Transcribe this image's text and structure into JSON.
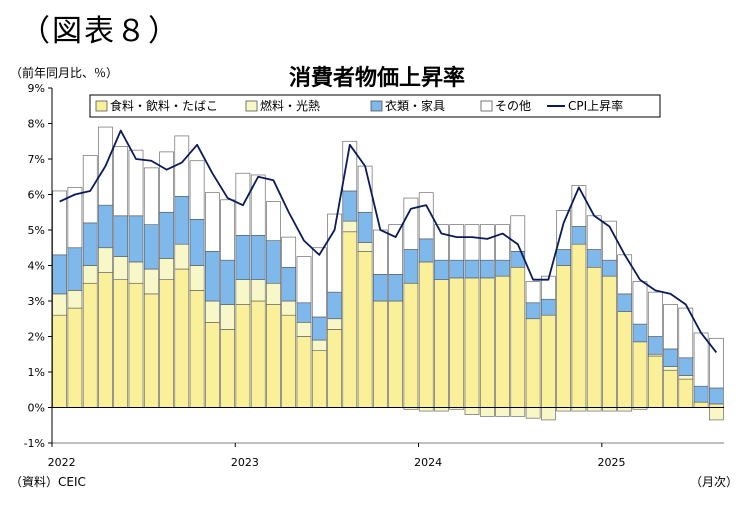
{
  "figure_label": "（図表８）",
  "source_note": "（資料）CEIC",
  "unit_note": "（前年同月比、％）",
  "x_unit_note": "（月次）",
  "colors": {
    "food": "#faf09a",
    "fuel": "#f7f7c8",
    "clothing": "#7fb8ea",
    "other": "#ffffff",
    "cpi": "#0b1a5a",
    "bar_stroke": "#555555"
  },
  "chart_data": {
    "type": "bar",
    "title": "消費者物価上昇率",
    "ylim": [
      -1,
      9
    ],
    "yticks": [
      "-1%",
      "0%",
      "1%",
      "2%",
      "3%",
      "4%",
      "5%",
      "6%",
      "7%",
      "8%",
      "9%"
    ],
    "year_labels": [
      "2022",
      "2023",
      "2024",
      "2025"
    ],
    "legend_position": "top",
    "series": [
      {
        "name": "食料・飲料・たばこ",
        "values": [
          2.6,
          2.8,
          3.5,
          3.8,
          3.6,
          3.5,
          3.2,
          3.6,
          3.9,
          3.3,
          2.4,
          2.2,
          2.9,
          3.0,
          2.9,
          2.6,
          2.0,
          1.6,
          2.2,
          4.95,
          4.4,
          3.0,
          3.0,
          3.5,
          4.1,
          3.6,
          3.65,
          3.65,
          3.65,
          3.7,
          3.95,
          2.5,
          2.6,
          4.0,
          4.6,
          3.95,
          3.7,
          2.7,
          1.85,
          1.45,
          1.05,
          0.8,
          0.15,
          0.1
        ]
      },
      {
        "name": "燃料・光熱",
        "values": [
          0.6,
          0.5,
          0.5,
          0.7,
          0.65,
          0.6,
          0.7,
          0.6,
          0.7,
          0.7,
          0.6,
          0.7,
          0.7,
          0.6,
          0.6,
          0.4,
          0.4,
          0.3,
          0.3,
          0.3,
          0.25,
          0,
          0,
          -0.05,
          -0.1,
          -0.1,
          -0.05,
          -0.2,
          -0.25,
          -0.25,
          -0.25,
          -0.3,
          -0.35,
          -0.1,
          -0.1,
          -0.1,
          -0.1,
          -0.1,
          -0.05,
          0.05,
          0.1,
          0.1,
          0,
          -0.35
        ]
      },
      {
        "name": "衣類・家具",
        "values": [
          1.1,
          1.2,
          1.2,
          1.2,
          1.15,
          1.3,
          1.25,
          1.3,
          1.35,
          1.3,
          1.4,
          1.25,
          1.25,
          1.25,
          1.2,
          0.95,
          0.55,
          0.65,
          0.75,
          0.85,
          0.85,
          0.75,
          0.75,
          0.95,
          0.65,
          0.55,
          0.5,
          0.5,
          0.5,
          0.45,
          0.45,
          0.45,
          0.45,
          0.45,
          0.5,
          0.5,
          0.45,
          0.5,
          0.5,
          0.5,
          0.5,
          0.5,
          0.45,
          0.45
        ]
      },
      {
        "name": "その他",
        "values": [
          1.8,
          1.7,
          1.9,
          2.2,
          1.95,
          1.85,
          1.6,
          1.7,
          1.7,
          1.65,
          1.65,
          1.7,
          1.75,
          1.7,
          1.1,
          0.85,
          1.3,
          1.95,
          2.2,
          1.4,
          1.3,
          1.25,
          1.4,
          1.45,
          1.3,
          1.0,
          1.0,
          1.0,
          1.0,
          1.0,
          1.0,
          0.6,
          0.65,
          1.1,
          1.15,
          0.95,
          1.1,
          1.1,
          1.2,
          1.25,
          1.25,
          1.4,
          1.5,
          1.4
        ]
      }
    ],
    "line": {
      "name": "CPI上昇率",
      "values": [
        5.8,
        6.0,
        6.1,
        6.8,
        7.8,
        7.0,
        6.95,
        6.7,
        6.9,
        7.4,
        6.6,
        5.9,
        5.7,
        6.5,
        6.4,
        5.5,
        4.7,
        4.3,
        5.0,
        7.4,
        6.8,
        5.0,
        4.8,
        5.6,
        5.7,
        4.9,
        4.8,
        4.8,
        4.75,
        4.9,
        4.6,
        3.6,
        3.6,
        5.2,
        6.2,
        5.4,
        5.1,
        4.3,
        3.6,
        3.3,
        3.2,
        2.9,
        2.1,
        1.55
      ]
    }
  }
}
